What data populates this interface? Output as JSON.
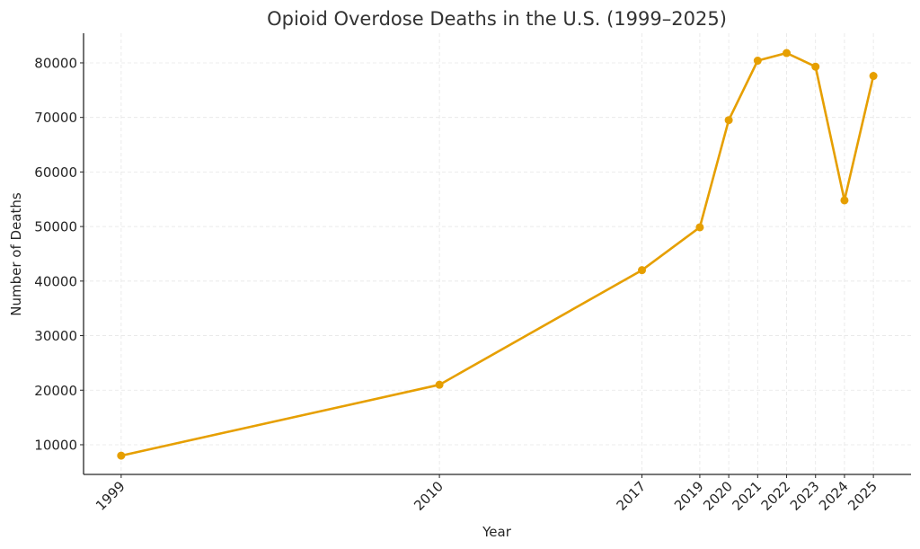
{
  "chart_data": {
    "type": "line",
    "title": "Opioid Overdose Deaths in the U.S. (1999–2025)",
    "xlabel": "Year",
    "ylabel": "Number of Deaths",
    "x": [
      1999,
      2010,
      2017,
      2019,
      2020,
      2021,
      2022,
      2023,
      2024,
      2025
    ],
    "x_tick_labels": [
      "1999",
      "2010",
      "2017",
      "2019",
      "2020",
      "2021",
      "2022",
      "2023",
      "2024",
      "2025"
    ],
    "series": [
      {
        "name": "Opioid Overdose Deaths",
        "values": [
          8000,
          21000,
          42000,
          49860,
          69500,
          80400,
          81800,
          79300,
          54800,
          77600
        ],
        "color": "#e69f00"
      }
    ],
    "y_ticks": [
      10000,
      20000,
      30000,
      40000,
      50000,
      60000,
      70000,
      80000
    ],
    "y_tick_labels": [
      "10000",
      "20000",
      "30000",
      "40000",
      "50000",
      "60000",
      "70000",
      "80000"
    ],
    "xlim": [
      1997.7,
      2026.3
    ],
    "ylim": [
      4560,
      85430
    ],
    "grid": true,
    "legend": "none"
  }
}
